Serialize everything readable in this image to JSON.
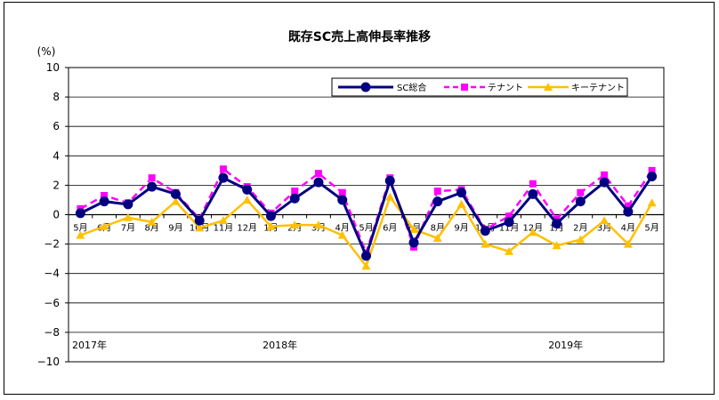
{
  "chart_data": {
    "type": "line",
    "title": "既存SC売上高伸長率推移",
    "ylabel": "(%)",
    "ylim": [
      -10,
      10
    ],
    "ytick_step": 2,
    "yticks": [
      "10",
      "8",
      "6",
      "4",
      "2",
      "0",
      "−2",
      "−4",
      "−6",
      "−8",
      "−10"
    ],
    "grid": "horizontal",
    "legend_position": "top-right",
    "categories": [
      "5月",
      "6月",
      "7月",
      "8月",
      "9月",
      "10月",
      "11月",
      "12月",
      "1月",
      "2月",
      "3月",
      "4月",
      "5月",
      "6月",
      "7月",
      "8月",
      "9月",
      "10月",
      "11月",
      "12月",
      "1月",
      "2月",
      "3月",
      "4月",
      "5月"
    ],
    "year_labels": [
      {
        "index": 0,
        "label": "2017年"
      },
      {
        "index": 8,
        "label": "2018年"
      },
      {
        "index": 20,
        "label": "2019年"
      }
    ],
    "series": [
      {
        "name": "SC総合",
        "color": "#000080",
        "marker": "circle",
        "dash": "solid",
        "values": [
          0.1,
          0.9,
          0.7,
          1.9,
          1.4,
          -0.4,
          2.5,
          1.7,
          -0.1,
          1.1,
          2.2,
          1.0,
          -2.8,
          2.3,
          -1.9,
          0.9,
          1.5,
          -1.1,
          -0.5,
          1.4,
          -0.6,
          0.9,
          2.2,
          0.2,
          2.6
        ]
      },
      {
        "name": "テナント",
        "color": "#ff00ff",
        "marker": "square",
        "dash": "dashed",
        "values": [
          0.4,
          1.3,
          0.8,
          2.5,
          1.5,
          -0.3,
          3.1,
          1.9,
          0.1,
          1.6,
          2.8,
          1.5,
          -2.6,
          2.5,
          -2.2,
          1.6,
          1.7,
          -1.0,
          -0.1,
          2.1,
          -0.3,
          1.5,
          2.7,
          0.6,
          3.0
        ]
      },
      {
        "name": "キーテナント",
        "color": "#ffc000",
        "marker": "triangle",
        "dash": "solid",
        "values": [
          -1.4,
          -0.8,
          -0.2,
          -0.5,
          0.9,
          -0.9,
          -0.4,
          1.0,
          -0.8,
          -0.7,
          -0.7,
          -1.4,
          -3.5,
          1.2,
          -1.0,
          -1.6,
          0.7,
          -2.0,
          -2.5,
          -1.2,
          -2.1,
          -1.7,
          -0.4,
          -2.0,
          0.8
        ]
      }
    ]
  }
}
